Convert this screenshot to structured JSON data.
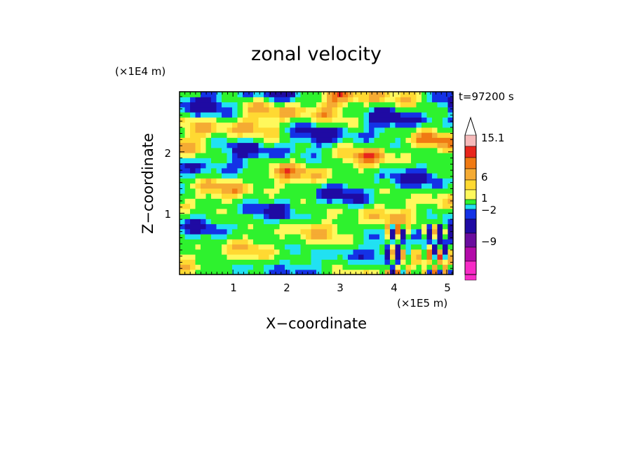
{
  "chart_data": {
    "type": "heatmap",
    "title": "zonal velocity",
    "xlabel": "X−coordinate",
    "ylabel": "Z−coordinate",
    "x_unit": "(×1E5 m)",
    "y_unit": "(×1E4 m)",
    "time_label": "t=97200 s",
    "xlim": [
      0,
      5.12
    ],
    "ylim": [
      0,
      2.98
    ],
    "x_ticks": [
      "1",
      "2",
      "3",
      "4",
      "5"
    ],
    "y_ticks": [
      "1",
      "2"
    ],
    "colorbar": {
      "labels": [
        "15.1",
        "6",
        "1",
        "−2",
        "−9"
      ],
      "colors": [
        "#FFFFFF",
        "#F6BABA",
        "#E8261C",
        "#F07A13",
        "#F5AB33",
        "#FFD932",
        "#FFF85C",
        "#2EF22E",
        "#21E1F2",
        "#1432E6",
        "#1F0AA3",
        "#6A0C9E",
        "#B30AA9",
        "#F72BC6"
      ]
    },
    "grid": false,
    "legend": "colorbar right"
  }
}
